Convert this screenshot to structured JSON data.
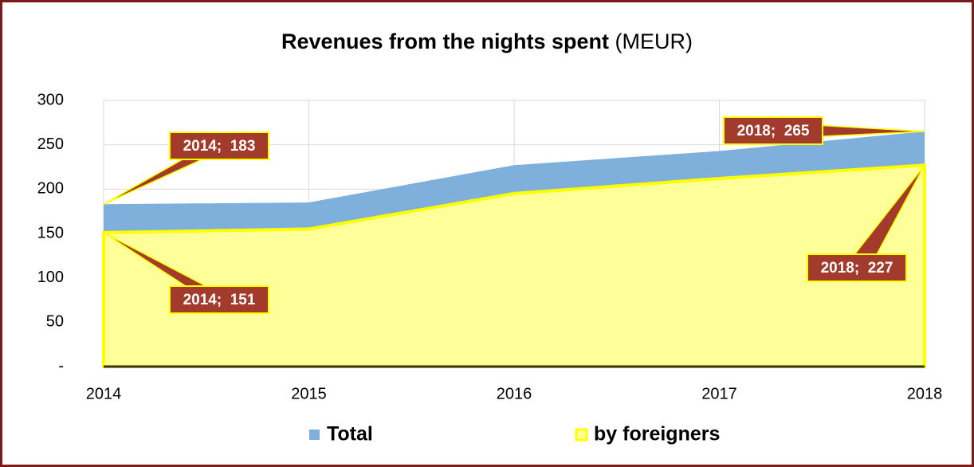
{
  "chart_data": {
    "type": "area",
    "title": "Revenues from the nights spent",
    "title_unit": "(MEUR)",
    "categories": [
      "2014",
      "2015",
      "2016",
      "2017",
      "2018"
    ],
    "series": [
      {
        "name": "Total",
        "color": "#7fb0dc",
        "values": [
          183,
          185,
          227,
          243,
          265
        ],
        "value_labels": [
          "2014;  183",
          null,
          null,
          null,
          "2018;  265"
        ]
      },
      {
        "name": "by foreigners",
        "color": "#ffff99",
        "values": [
          151,
          155,
          195,
          212,
          227
        ],
        "value_labels": [
          "2014;  151",
          null,
          null,
          null,
          "2018;  227"
        ]
      }
    ],
    "ylim": [
      0,
      300
    ],
    "yticks": [
      {
        "value": 0,
        "label": "-"
      },
      50,
      100,
      150,
      200,
      250,
      300
    ],
    "grid": true,
    "legend": "bottom"
  }
}
